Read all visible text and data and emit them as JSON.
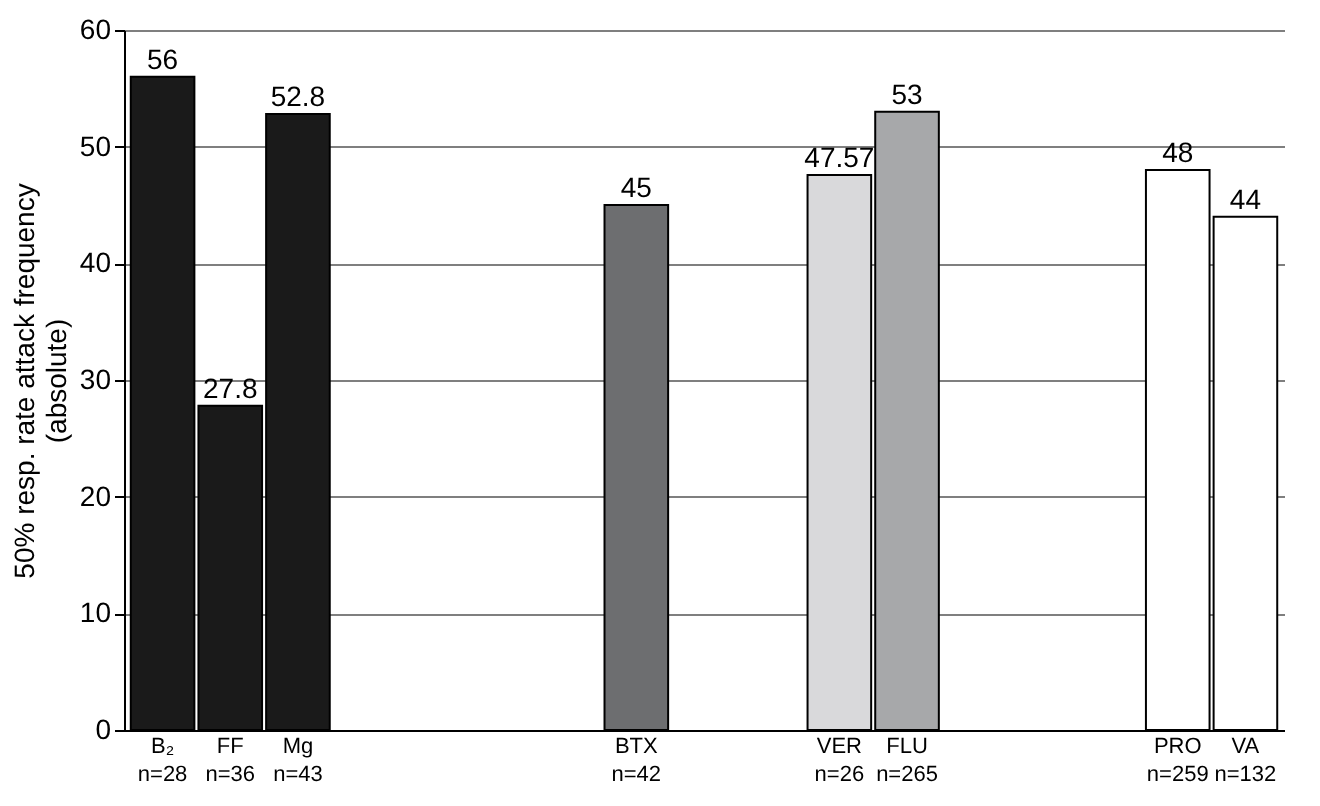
{
  "chart_data": {
    "type": "bar",
    "ylabel": "50% resp. rate attack frequency\n(absolute)",
    "categories": [
      "B₂\nn=28",
      "FF\nn=36",
      "Mg\nn=43",
      null,
      null,
      null,
      null,
      "BTX\nn=42",
      null,
      null,
      "VER\nn=26",
      "FLU\nn=265",
      null,
      null,
      null,
      "PRO\nn=259",
      "VA\nn=132"
    ],
    "values": [
      56,
      27.8,
      52.8,
      null,
      null,
      null,
      null,
      45,
      null,
      null,
      47.57,
      53,
      null,
      null,
      null,
      48,
      44
    ],
    "colors": [
      "#1a1a1a",
      "#1a1a1a",
      "#1a1a1a",
      "#ffffff",
      "#ffffff",
      "#ffffff",
      "#ffffff",
      "#6d6e70",
      "#ffffff",
      "#ffffff",
      "#d9d9db",
      "#a7a8aa",
      "#ffffff",
      "#ffffff",
      "#ffffff",
      "#ffffff",
      "#ffffff"
    ],
    "ylim": [
      0,
      60
    ],
    "yticks": [
      0,
      10,
      20,
      30,
      40,
      50,
      60
    ],
    "grid": "y",
    "data_labels": true
  }
}
